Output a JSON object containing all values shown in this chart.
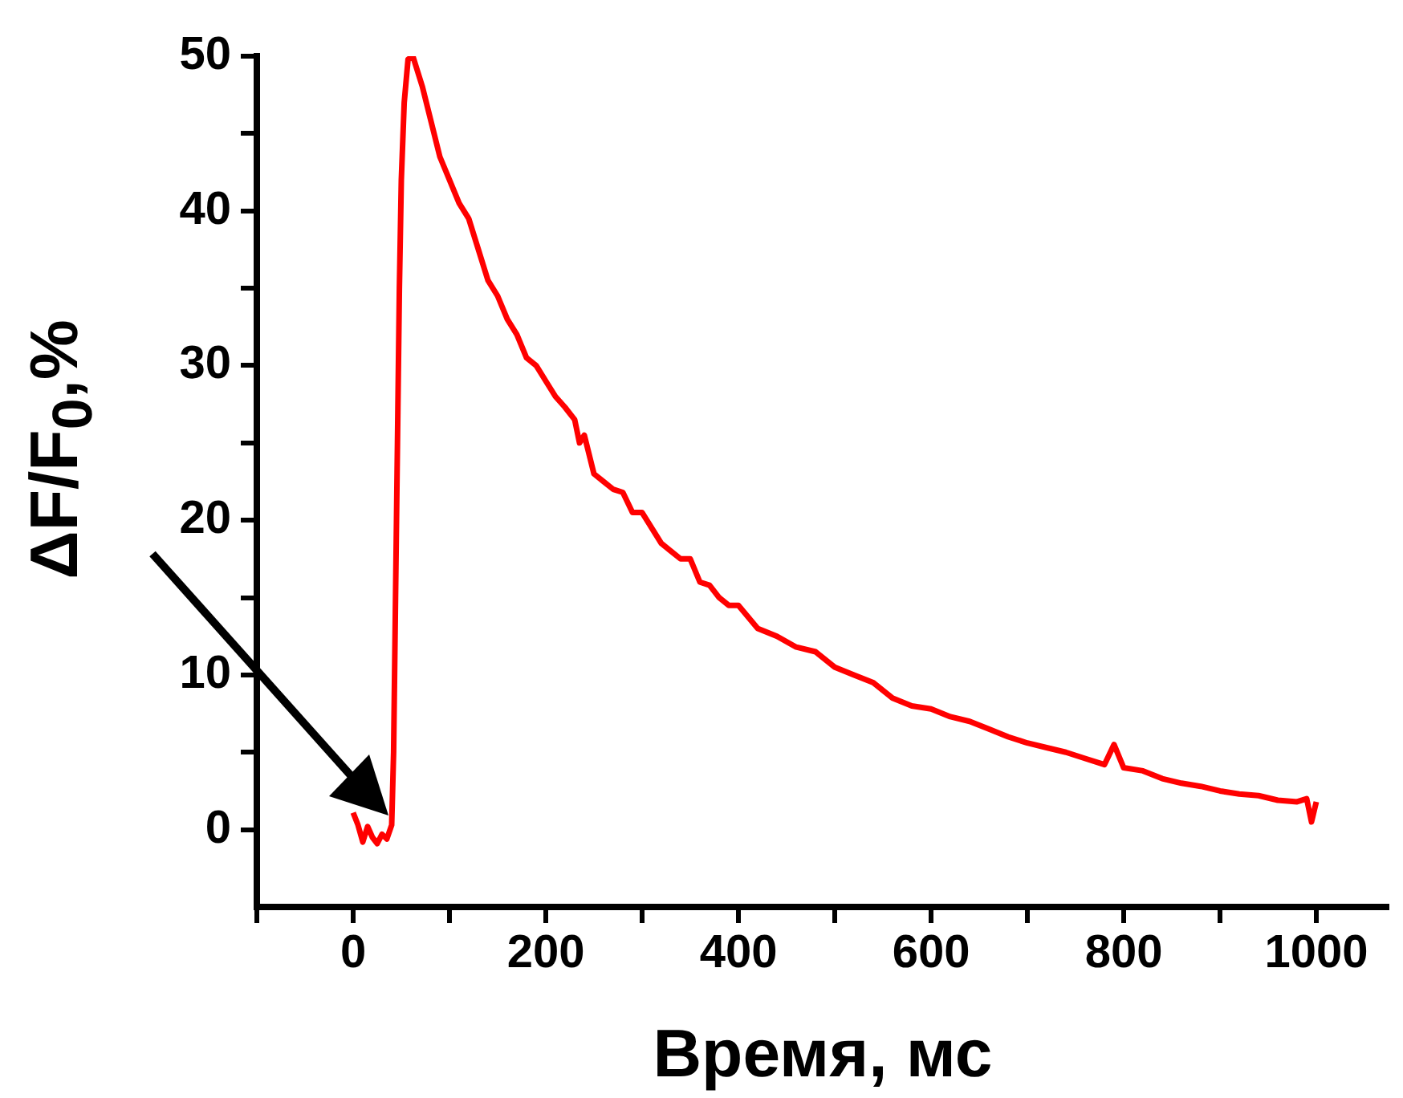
{
  "chart_data": {
    "type": "line",
    "xlabel": "Время, мс",
    "ylabel": "ΔF/F$_{0}$,%",
    "xlim": [
      -100,
      1075
    ],
    "ylim": [
      -5,
      50
    ],
    "xticks": [
      {
        "value": -100,
        "label": null
      },
      0,
      {
        "value": 100,
        "label": null
      },
      200,
      {
        "value": 300,
        "label": null
      },
      400,
      {
        "value": 500,
        "label": null
      },
      600,
      {
        "value": 700,
        "label": null
      },
      800,
      {
        "value": 900,
        "label": null
      },
      1000
    ],
    "yticks": [
      0,
      {
        "value": 5,
        "label": null
      },
      10,
      {
        "value": 15,
        "label": null
      },
      20,
      {
        "value": 25,
        "label": null
      },
      30,
      {
        "value": 35,
        "label": null
      },
      40,
      {
        "value": 45,
        "label": null
      },
      50
    ],
    "grid": false,
    "legend": false,
    "marker": "none",
    "line_style": "solid",
    "series": [
      {
        "color": "#ff0000",
        "x": [
          0,
          5,
          10,
          15,
          20,
          25,
          30,
          35,
          40,
          42,
          44,
          46,
          48,
          50,
          53,
          57,
          62,
          66,
          72,
          80,
          90,
          100,
          110,
          120,
          130,
          140,
          150,
          160,
          170,
          180,
          190,
          200,
          210,
          220,
          230,
          235,
          240,
          250,
          260,
          270,
          280,
          290,
          300,
          310,
          320,
          330,
          340,
          350,
          360,
          370,
          380,
          390,
          400,
          420,
          440,
          460,
          480,
          500,
          520,
          540,
          560,
          580,
          600,
          620,
          640,
          660,
          680,
          700,
          720,
          740,
          760,
          780,
          790,
          800,
          820,
          840,
          860,
          880,
          900,
          920,
          940,
          960,
          980,
          990,
          995,
          1000
        ],
        "values": [
          1.1,
          0.3,
          -0.8,
          0.2,
          -0.5,
          -0.9,
          -0.3,
          -0.6,
          0.3,
          5,
          15,
          25,
          35,
          42,
          47,
          49.8,
          50,
          49.2,
          48,
          46,
          43.5,
          42,
          40.5,
          39.5,
          37.5,
          35.5,
          34.5,
          33,
          32,
          30.5,
          30,
          29,
          28,
          27.3,
          26.5,
          25,
          25.5,
          23,
          22.5,
          22,
          21.8,
          20.5,
          20.5,
          19.5,
          18.5,
          18,
          17.5,
          17.5,
          16,
          15.8,
          15,
          14.5,
          14.5,
          13,
          12.5,
          11.8,
          11.5,
          10.5,
          10,
          9.5,
          8.5,
          8,
          7.8,
          7.3,
          7,
          6.5,
          6,
          5.6,
          5.3,
          5,
          4.6,
          4.2,
          5.5,
          4,
          3.8,
          3.3,
          3,
          2.8,
          2.5,
          2.3,
          2.2,
          1.9,
          1.8,
          2,
          0.5,
          1.8
        ]
      }
    ]
  }
}
